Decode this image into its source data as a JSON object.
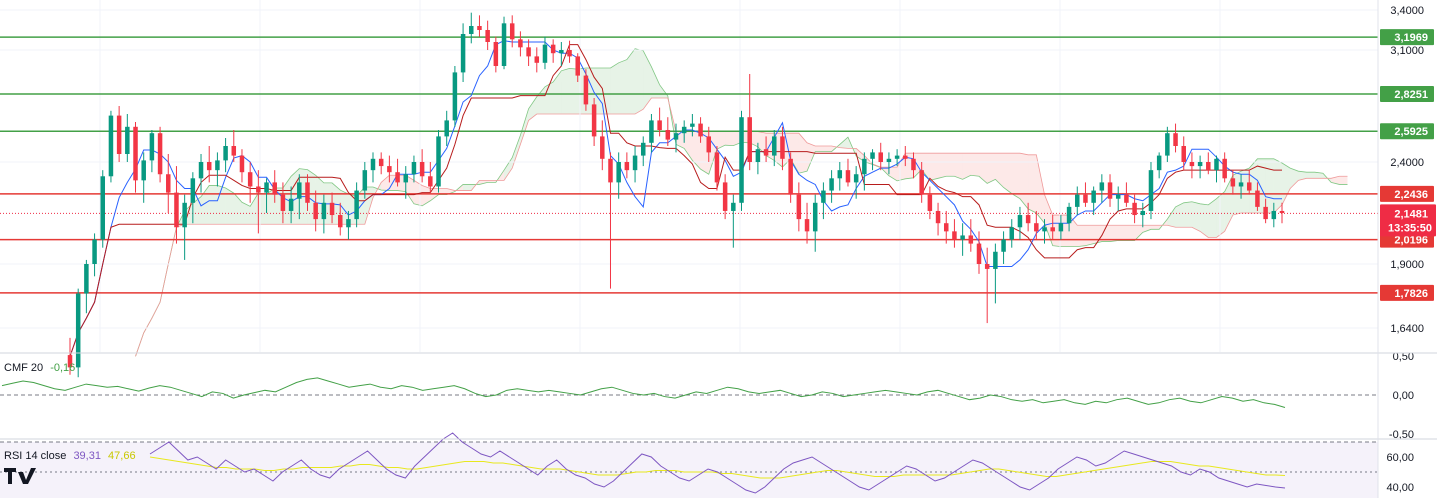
{
  "chart_data": {
    "type": "candlestick",
    "title": "",
    "price_axis": {
      "ticks": [
        "3,4000",
        "3,1000",
        "2,4000",
        "1,9000",
        "1,6400"
      ],
      "ylim": [
        1.55,
        3.42
      ]
    },
    "price_levels": [
      {
        "label": "3,1969",
        "value": 3.1969,
        "color": "#43a047"
      },
      {
        "label": "2,8251",
        "value": 2.8251,
        "color": "#43a047"
      },
      {
        "label": "2,5925",
        "value": 2.5925,
        "color": "#43a047"
      },
      {
        "label": "2,2436",
        "value": 2.2436,
        "color": "#e53935"
      },
      {
        "label": "2,0196",
        "value": 2.0196,
        "color": "#e53935"
      },
      {
        "label": "1,7826",
        "value": 1.7826,
        "color": "#e53935"
      }
    ],
    "current_price": {
      "label": "2,1481",
      "value": 2.1481,
      "countdown": "13:35:50",
      "color": "#ef2c45"
    },
    "candles": [
      [
        1.53,
        1.6,
        1.45,
        1.48
      ],
      [
        1.48,
        1.8,
        1.44,
        1.78
      ],
      [
        1.78,
        1.92,
        1.7,
        1.9
      ],
      [
        1.9,
        2.05,
        1.85,
        2.02
      ],
      [
        2.02,
        2.36,
        1.98,
        2.33
      ],
      [
        2.33,
        2.72,
        2.3,
        2.69
      ],
      [
        2.69,
        2.75,
        2.4,
        2.45
      ],
      [
        2.45,
        2.7,
        2.4,
        2.62
      ],
      [
        2.62,
        2.65,
        2.25,
        2.31
      ],
      [
        2.31,
        2.46,
        2.2,
        2.41
      ],
      [
        2.41,
        2.6,
        2.35,
        2.58
      ],
      [
        2.58,
        2.62,
        2.3,
        2.34
      ],
      [
        2.34,
        2.45,
        2.15,
        2.25
      ],
      [
        2.25,
        2.38,
        2.0,
        2.08
      ],
      [
        2.08,
        2.24,
        1.92,
        2.2
      ],
      [
        2.2,
        2.35,
        2.1,
        2.32
      ],
      [
        2.32,
        2.45,
        2.25,
        2.4
      ],
      [
        2.4,
        2.5,
        2.3,
        2.36
      ],
      [
        2.36,
        2.46,
        2.28,
        2.41
      ],
      [
        2.41,
        2.55,
        2.35,
        2.5
      ],
      [
        2.5,
        2.6,
        2.4,
        2.44
      ],
      [
        2.44,
        2.48,
        2.3,
        2.35
      ],
      [
        2.35,
        2.4,
        2.2,
        2.28
      ],
      [
        2.28,
        2.36,
        2.05,
        2.25
      ],
      [
        2.25,
        2.32,
        2.15,
        2.3
      ],
      [
        2.3,
        2.36,
        2.2,
        2.24
      ],
      [
        2.24,
        2.3,
        2.1,
        2.16
      ],
      [
        2.16,
        2.28,
        2.1,
        2.22
      ],
      [
        2.22,
        2.34,
        2.12,
        2.3
      ],
      [
        2.3,
        2.34,
        2.16,
        2.2
      ],
      [
        2.2,
        2.26,
        2.06,
        2.12
      ],
      [
        2.12,
        2.24,
        2.05,
        2.2
      ],
      [
        2.2,
        2.25,
        2.1,
        2.14
      ],
      [
        2.14,
        2.2,
        2.04,
        2.08
      ],
      [
        2.08,
        2.16,
        2.02,
        2.12
      ],
      [
        2.12,
        2.3,
        2.08,
        2.26
      ],
      [
        2.26,
        2.4,
        2.22,
        2.36
      ],
      [
        2.36,
        2.46,
        2.3,
        2.42
      ],
      [
        2.42,
        2.46,
        2.34,
        2.38
      ],
      [
        2.38,
        2.44,
        2.3,
        2.35
      ],
      [
        2.35,
        2.42,
        2.28,
        2.3
      ],
      [
        2.3,
        2.38,
        2.22,
        2.34
      ],
      [
        2.34,
        2.44,
        2.3,
        2.4
      ],
      [
        2.4,
        2.48,
        2.3,
        2.33
      ],
      [
        2.33,
        2.4,
        2.25,
        2.28
      ],
      [
        2.28,
        2.6,
        2.25,
        2.56
      ],
      [
        2.56,
        2.72,
        2.5,
        2.66
      ],
      [
        2.66,
        3.0,
        2.62,
        2.96
      ],
      [
        2.96,
        3.3,
        2.9,
        3.22
      ],
      [
        3.22,
        3.38,
        3.15,
        3.28
      ],
      [
        3.28,
        3.36,
        3.2,
        3.25
      ],
      [
        3.25,
        3.32,
        3.1,
        3.16
      ],
      [
        3.16,
        3.2,
        2.96,
        3.0
      ],
      [
        3.0,
        3.35,
        2.98,
        3.3
      ],
      [
        3.3,
        3.36,
        3.12,
        3.18
      ],
      [
        3.18,
        3.24,
        3.06,
        3.12
      ],
      [
        3.12,
        3.18,
        3.0,
        3.06
      ],
      [
        3.06,
        3.12,
        2.96,
        3.02
      ],
      [
        3.02,
        3.2,
        2.98,
        3.14
      ],
      [
        3.14,
        3.18,
        3.02,
        3.08
      ],
      [
        3.08,
        3.16,
        3.0,
        3.1
      ],
      [
        3.1,
        3.17,
        3.02,
        3.06
      ],
      [
        3.06,
        3.08,
        2.9,
        2.94
      ],
      [
        2.94,
        2.98,
        2.72,
        2.76
      ],
      [
        2.76,
        2.8,
        2.5,
        2.56
      ],
      [
        2.56,
        2.66,
        2.36,
        2.42
      ],
      [
        2.42,
        2.46,
        1.8,
        2.3
      ],
      [
        2.3,
        2.46,
        2.22,
        2.4
      ],
      [
        2.4,
        2.46,
        2.32,
        2.36
      ],
      [
        2.36,
        2.5,
        2.3,
        2.44
      ],
      [
        2.44,
        2.56,
        2.38,
        2.52
      ],
      [
        2.52,
        2.7,
        2.46,
        2.66
      ],
      [
        2.66,
        2.74,
        2.56,
        2.6
      ],
      [
        2.6,
        2.68,
        2.5,
        2.54
      ],
      [
        2.54,
        2.64,
        2.46,
        2.58
      ],
      [
        2.58,
        2.66,
        2.52,
        2.62
      ],
      [
        2.62,
        2.7,
        2.56,
        2.64
      ],
      [
        2.64,
        2.68,
        2.52,
        2.56
      ],
      [
        2.56,
        2.62,
        2.4,
        2.46
      ],
      [
        2.46,
        2.5,
        2.26,
        2.3
      ],
      [
        2.3,
        2.34,
        2.12,
        2.16
      ],
      [
        2.16,
        2.24,
        1.98,
        2.2
      ],
      [
        2.2,
        2.72,
        2.16,
        2.68
      ],
      [
        2.68,
        2.95,
        2.36,
        2.4
      ],
      [
        2.4,
        2.52,
        2.34,
        2.48
      ],
      [
        2.48,
        2.56,
        2.4,
        2.44
      ],
      [
        2.44,
        2.6,
        2.38,
        2.56
      ],
      [
        2.56,
        2.62,
        2.36,
        2.42
      ],
      [
        2.42,
        2.46,
        2.2,
        2.24
      ],
      [
        2.24,
        2.3,
        2.06,
        2.12
      ],
      [
        2.12,
        2.2,
        2.0,
        2.06
      ],
      [
        2.06,
        2.24,
        1.96,
        2.2
      ],
      [
        2.2,
        2.3,
        2.12,
        2.26
      ],
      [
        2.26,
        2.36,
        2.2,
        2.32
      ],
      [
        2.32,
        2.4,
        2.26,
        2.36
      ],
      [
        2.36,
        2.42,
        2.28,
        2.3
      ],
      [
        2.3,
        2.38,
        2.22,
        2.34
      ],
      [
        2.34,
        2.46,
        2.26,
        2.42
      ],
      [
        2.42,
        2.48,
        2.36,
        2.46
      ],
      [
        2.46,
        2.52,
        2.36,
        2.4
      ],
      [
        2.4,
        2.46,
        2.34,
        2.42
      ],
      [
        2.42,
        2.48,
        2.38,
        2.44
      ],
      [
        2.44,
        2.5,
        2.38,
        2.42
      ],
      [
        2.42,
        2.46,
        2.32,
        2.36
      ],
      [
        2.36,
        2.4,
        2.2,
        2.24
      ],
      [
        2.24,
        2.28,
        2.12,
        2.16
      ],
      [
        2.16,
        2.2,
        2.04,
        2.1
      ],
      [
        2.1,
        2.16,
        2.0,
        2.06
      ],
      [
        2.06,
        2.12,
        1.98,
        2.02
      ],
      [
        2.02,
        2.1,
        1.94,
        2.04
      ],
      [
        2.04,
        2.12,
        1.96,
        2.0
      ],
      [
        2.0,
        2.06,
        1.86,
        1.9
      ],
      [
        1.9,
        1.98,
        1.66,
        1.88
      ],
      [
        1.88,
        2.0,
        1.74,
        1.96
      ],
      [
        1.96,
        2.06,
        1.9,
        2.02
      ],
      [
        2.02,
        2.12,
        1.98,
        2.08
      ],
      [
        2.08,
        2.18,
        2.02,
        2.14
      ],
      [
        2.14,
        2.2,
        2.06,
        2.1
      ],
      [
        2.1,
        2.16,
        2.02,
        2.06
      ],
      [
        2.06,
        2.12,
        2.0,
        2.08
      ],
      [
        2.08,
        2.14,
        2.02,
        2.06
      ],
      [
        2.06,
        2.14,
        2.02,
        2.1
      ],
      [
        2.1,
        2.2,
        2.06,
        2.18
      ],
      [
        2.18,
        2.28,
        2.14,
        2.24
      ],
      [
        2.24,
        2.3,
        2.18,
        2.2
      ],
      [
        2.2,
        2.28,
        2.14,
        2.26
      ],
      [
        2.26,
        2.34,
        2.2,
        2.3
      ],
      [
        2.3,
        2.34,
        2.18,
        2.22
      ],
      [
        2.22,
        2.28,
        2.16,
        2.24
      ],
      [
        2.24,
        2.3,
        2.18,
        2.2
      ],
      [
        2.2,
        2.24,
        2.1,
        2.14
      ],
      [
        2.14,
        2.2,
        2.08,
        2.16
      ],
      [
        2.16,
        2.4,
        2.12,
        2.36
      ],
      [
        2.36,
        2.46,
        2.32,
        2.44
      ],
      [
        2.44,
        2.62,
        2.4,
        2.58
      ],
      [
        2.58,
        2.64,
        2.46,
        2.5
      ],
      [
        2.5,
        2.56,
        2.36,
        2.4
      ],
      [
        2.4,
        2.46,
        2.32,
        2.38
      ],
      [
        2.38,
        2.44,
        2.32,
        2.4
      ],
      [
        2.4,
        2.46,
        2.34,
        2.36
      ],
      [
        2.36,
        2.44,
        2.3,
        2.42
      ],
      [
        2.42,
        2.46,
        2.3,
        2.32
      ],
      [
        2.32,
        2.36,
        2.24,
        2.28
      ],
      [
        2.28,
        2.34,
        2.22,
        2.3
      ],
      [
        2.3,
        2.36,
        2.24,
        2.26
      ],
      [
        2.26,
        2.3,
        2.16,
        2.18
      ],
      [
        2.18,
        2.22,
        2.1,
        2.12
      ],
      [
        2.12,
        2.2,
        2.08,
        2.16
      ],
      [
        2.16,
        2.2,
        2.1,
        2.15
      ]
    ],
    "indicators": [
      {
        "name": "CMF 20",
        "value": "-0,16",
        "color": "#43a047",
        "axis_ticks": [
          "0,50",
          "0,00",
          "-0,50"
        ],
        "values": [
          0.12,
          0.15,
          0.18,
          0.16,
          0.12,
          0.08,
          0.06,
          0.1,
          0.14,
          0.12,
          0.1,
          0.11,
          0.08,
          0.05,
          0.09,
          0.12,
          0.1,
          0.06,
          0.02,
          -0.02,
          0.04,
          0.02,
          -0.04,
          0.0,
          0.03,
          0.06,
          0.04,
          0.1,
          0.16,
          0.2,
          0.22,
          0.18,
          0.14,
          0.1,
          0.12,
          0.14,
          0.1,
          0.08,
          0.12,
          0.1,
          0.06,
          0.08,
          0.1,
          0.12,
          0.08,
          0.02,
          -0.02,
          0.0,
          0.06,
          0.08,
          0.06,
          0.04,
          0.06,
          0.04,
          0.02,
          0.0,
          0.04,
          0.08,
          0.1,
          0.06,
          0.02,
          0.0,
          0.02,
          -0.02,
          -0.04,
          0.0,
          0.04,
          0.02,
          0.06,
          0.1,
          0.08,
          0.04,
          0.02,
          0.04,
          0.06,
          0.02,
          -0.02,
          0.0,
          0.04,
          0.02,
          -0.02,
          0.0,
          0.02,
          0.04,
          0.06,
          0.04,
          0.02,
          0.0,
          0.04,
          0.06,
          0.02,
          -0.02,
          -0.06,
          -0.04,
          0.0,
          -0.02,
          -0.06,
          -0.08,
          -0.06,
          -0.1,
          -0.08,
          -0.06,
          -0.1,
          -0.12,
          -0.08,
          -0.1,
          -0.06,
          -0.04,
          -0.08,
          -0.12,
          -0.1,
          -0.06,
          -0.04,
          -0.08,
          -0.1,
          -0.06,
          -0.02,
          -0.04,
          -0.08,
          -0.06,
          -0.1,
          -0.12,
          -0.16
        ]
      },
      {
        "name": "RSI 14 close",
        "value": "39,31",
        "ma_value": "47,66",
        "color": "#7e57c2",
        "ma_color": "#e8e81e",
        "axis_ticks": [
          "60,00",
          "40,00"
        ],
        "values": [
          62,
          66,
          70,
          64,
          58,
          60,
          56,
          52,
          58,
          54,
          50,
          52,
          48,
          44,
          50,
          54,
          58,
          52,
          48,
          46,
          52,
          56,
          60,
          64,
          58,
          52,
          48,
          46,
          54,
          60,
          66,
          72,
          76,
          70,
          66,
          62,
          60,
          64,
          60,
          56,
          52,
          48,
          54,
          58,
          52,
          48,
          46,
          42,
          40,
          44,
          50,
          56,
          62,
          60,
          54,
          50,
          46,
          44,
          48,
          52,
          50,
          46,
          42,
          38,
          36,
          40,
          46,
          52,
          56,
          58,
          60,
          56,
          52,
          48,
          44,
          40,
          38,
          42,
          46,
          50,
          54,
          52,
          48,
          44,
          46,
          50,
          54,
          58,
          56,
          52,
          48,
          44,
          40,
          38,
          42,
          46,
          52,
          56,
          60,
          58,
          54,
          56,
          60,
          64,
          62,
          60,
          58,
          56,
          54,
          50,
          48,
          52,
          50,
          46,
          44,
          42,
          40,
          42,
          41,
          40,
          39.31
        ],
        "ma": [
          60,
          59,
          58,
          57,
          56,
          55,
          54,
          53,
          53,
          52,
          52,
          52,
          51,
          51,
          52,
          52,
          53,
          53,
          53,
          53,
          54,
          54,
          55,
          55,
          54,
          53,
          53,
          52,
          52,
          53,
          54,
          55,
          56,
          57,
          57,
          57,
          56,
          56,
          55,
          54,
          53,
          52,
          52,
          52,
          51,
          50,
          49,
          48,
          48,
          48,
          49,
          50,
          50,
          51,
          51,
          51,
          50,
          50,
          50,
          50,
          49,
          49,
          48,
          47,
          46,
          46,
          46,
          47,
          48,
          49,
          50,
          51,
          51,
          50,
          49,
          48,
          47,
          47,
          47,
          48,
          48,
          48,
          48,
          48,
          48,
          49,
          50,
          51,
          52,
          52,
          51,
          50,
          49,
          48,
          47,
          47,
          48,
          49,
          50,
          51,
          52,
          53,
          54,
          55,
          56,
          57,
          57,
          57,
          56,
          55,
          54,
          54,
          53,
          52,
          51,
          50,
          49,
          48,
          48,
          47.66
        ]
      }
    ]
  },
  "branding": {
    "logo": "TV",
    "logo_icon": "tradingview-logo-icon"
  }
}
